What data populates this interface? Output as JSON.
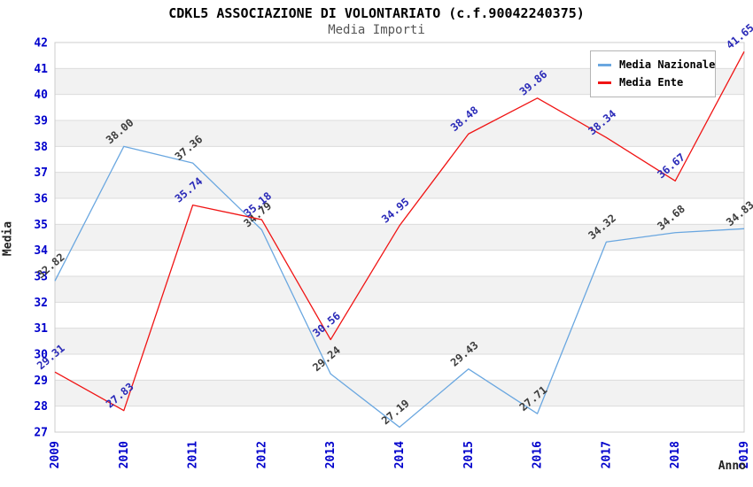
{
  "chart_data": {
    "type": "line",
    "title": "CDKL5 ASSOCIAZIONE DI VOLONTARIATO (c.f.90042240375)",
    "subtitle": "Media Importi",
    "xlabel": "Anno",
    "ylabel": "Media",
    "x": [
      "2009",
      "2010",
      "2011",
      "2012",
      "2013",
      "2014",
      "2015",
      "2016",
      "2017",
      "2018",
      "2019"
    ],
    "ylim": [
      27,
      42
    ],
    "ytick_step": 1,
    "grid": true,
    "banded_background": true,
    "legend_position": "top-right",
    "series": [
      {
        "name": "Media Nazionale",
        "color": "#6aa7e0",
        "label_color": "#3c3c3c",
        "values": [
          32.82,
          38.0,
          37.36,
          34.79,
          29.24,
          27.19,
          29.43,
          27.71,
          34.32,
          34.68,
          34.83
        ]
      },
      {
        "name": "Media Ente",
        "color": "#f01414",
        "label_color": "#2a2ab8",
        "values": [
          29.31,
          27.83,
          35.74,
          35.18,
          30.56,
          34.95,
          38.48,
          39.86,
          38.34,
          36.67,
          41.65
        ]
      }
    ],
    "colors": {
      "tick_label": "#0000cc",
      "band": "#f2f2f2",
      "gridline": "#dcdcdc",
      "plot_border": "#cccccc",
      "title": "#000000",
      "subtitle": "#555555"
    }
  }
}
